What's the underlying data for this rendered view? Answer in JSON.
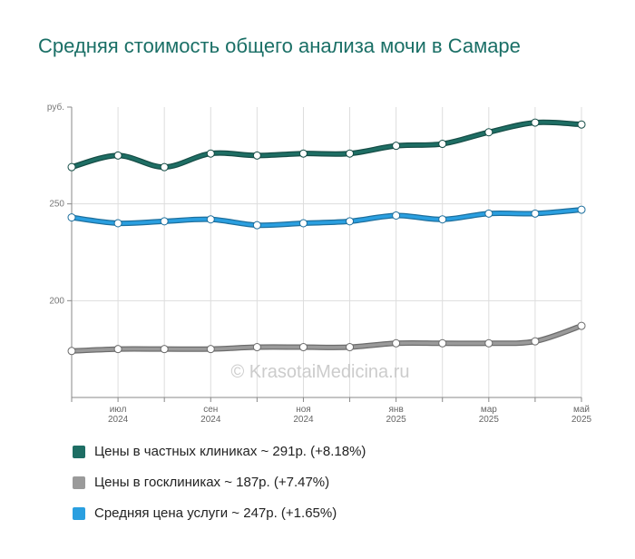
{
  "chart_data": {
    "type": "line",
    "title": "Средняя стоимость общего анализа мочи в Самаре",
    "watermark": "© KrasotaiMedicina.ru",
    "categories": [
      null,
      "июл\n2024",
      null,
      "сен\n2024",
      null,
      "ноя\n2024",
      null,
      "янв\n2025",
      null,
      "мар\n2025",
      null,
      "май\n2025"
    ],
    "series": [
      {
        "name": "Цены в частных клиниках ~ 291р. (+8.18%)",
        "color": "#1e6e64",
        "values": [
          269,
          275,
          269,
          276,
          275,
          276,
          276,
          280,
          281,
          287,
          292,
          291
        ]
      },
      {
        "name": "Цены в госклиниках ~ 187р. (+7.47%)",
        "color": "#9a9a9a",
        "values": [
          174,
          175,
          175,
          175,
          176,
          176,
          176,
          178,
          178,
          178,
          179,
          187
        ]
      },
      {
        "name": "Средняя цена услуги ~ 247р. (+1.65%)",
        "color": "#2a9fe0",
        "values": [
          243,
          240,
          241,
          242,
          239,
          240,
          241,
          244,
          242,
          245,
          245,
          247
        ]
      }
    ],
    "ylim": [
      150,
      300
    ],
    "yticks": [
      200,
      250,
      {
        "value": 300,
        "label": "руб."
      }
    ],
    "grid": true
  }
}
